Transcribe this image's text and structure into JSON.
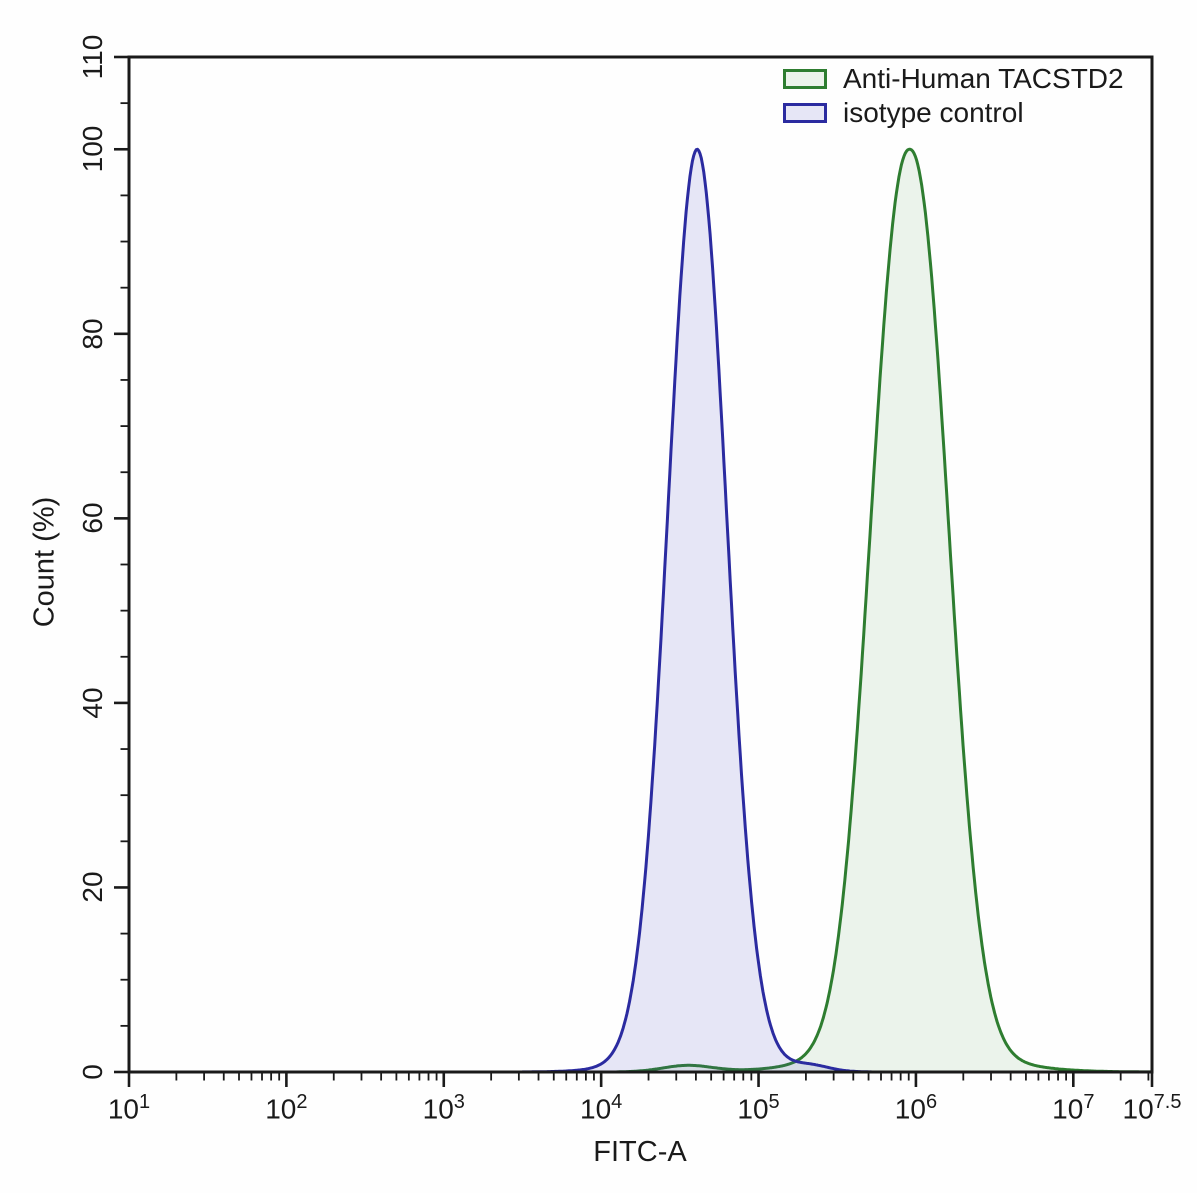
{
  "chart_data": {
    "type": "area",
    "subtype": "flow-cytometry-histogram-overlay",
    "title": "",
    "xlabel": "FITC-A",
    "ylabel": "Count (%)",
    "x_scale": "log10",
    "x_log_range": [
      1,
      7.5
    ],
    "y_range": [
      0,
      110
    ],
    "grid": false,
    "legend_position": "top-right-inside",
    "x_major_tick_exponents": [
      "1",
      "2",
      "3",
      "4",
      "5",
      "6",
      "7",
      "7.5"
    ],
    "x_tick_base": "10",
    "x_minor_ticks": "log sub-decades 2-9 per decade",
    "y_major_ticks": [
      0,
      20,
      40,
      60,
      80,
      100,
      110
    ],
    "y_minor_tick_step": 5,
    "axis_color": "#1a1a1a",
    "series": [
      {
        "name": "Anti-Human TACSTD2",
        "stroke": "#2e7d30",
        "fill": "rgba(70,150,70,0.10)",
        "peak": {
          "x_log10": 5.96,
          "x_value_approx": "9e5",
          "y_percent": 100
        },
        "visible_span_log10": [
          5.0,
          7.2
        ],
        "domain_log10": [
          4.1,
          7.5
        ],
        "components": [
          {
            "center": 5.96,
            "sigma": 0.24,
            "amp": 97,
            "power": 2.2
          },
          {
            "center": 5.96,
            "sigma": 0.45,
            "amp": 3,
            "power": 2
          },
          {
            "center": 4.55,
            "sigma": 0.16,
            "amp": 0.7,
            "power": 2
          }
        ]
      },
      {
        "name": "isotype control",
        "stroke": "#2b2ba0",
        "fill": "rgba(70,70,190,0.13)",
        "peak": {
          "x_log10": 4.61,
          "x_value_approx": "4e4",
          "y_percent": 100
        },
        "visible_span_log10": [
          3.8,
          5.3
        ],
        "domain_log10": [
          3.5,
          5.72
        ],
        "components": [
          {
            "center": 4.61,
            "sigma": 0.185,
            "amp": 97.5,
            "power": 2
          },
          {
            "center": 4.61,
            "sigma": 0.33,
            "amp": 2.5,
            "power": 2
          },
          {
            "center": 5.33,
            "sigma": 0.12,
            "amp": 0.6,
            "power": 2
          }
        ]
      }
    ]
  }
}
